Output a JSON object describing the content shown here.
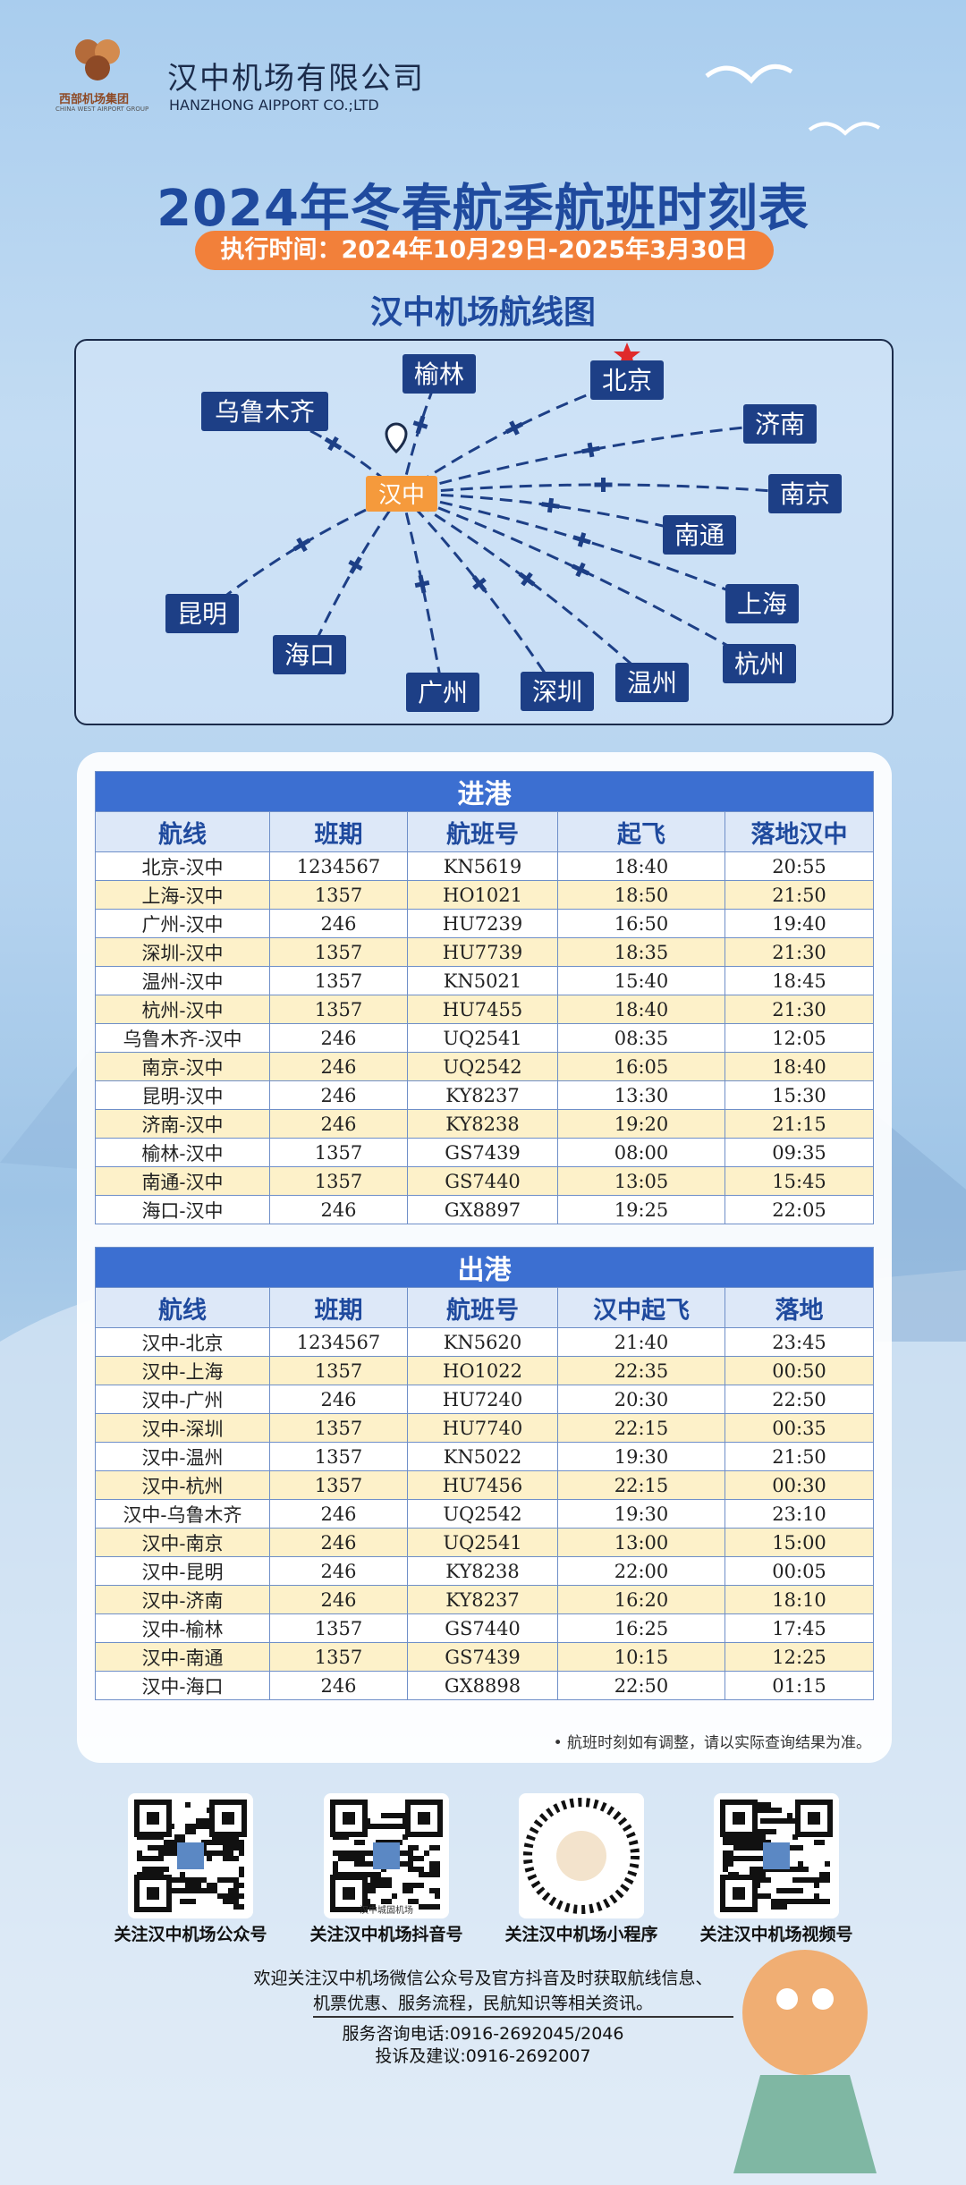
{
  "header": {
    "logo_cn": "西部机场集团",
    "logo_en": "CHINA WEST AIRPORT GROUP",
    "company_cn": "汉中机场有限公司",
    "company_en": "HANZHONG AIPPORT CO.;LTD"
  },
  "title": "2024年冬春航季航班时刻表",
  "period": "执行时间：2024年10月29日-2025年3月30日",
  "map": {
    "title": "汉中机场航线图",
    "hub": "汉中",
    "destinations": [
      "北京",
      "榆林",
      "乌鲁木齐",
      "济南",
      "南京",
      "南通",
      "上海",
      "杭州",
      "温州",
      "深圳",
      "广州",
      "海口",
      "昆明"
    ]
  },
  "arrivals": {
    "title": "进港",
    "columns": [
      "航线",
      "班期",
      "航班号",
      "起飞",
      "落地汉中"
    ],
    "rows": [
      [
        "北京-汉中",
        "1234567",
        "KN5619",
        "18:40",
        "20:55"
      ],
      [
        "上海-汉中",
        "1357",
        "HO1021",
        "18:50",
        "21:50"
      ],
      [
        "广州-汉中",
        "246",
        "HU7239",
        "16:50",
        "19:40"
      ],
      [
        "深圳-汉中",
        "1357",
        "HU7739",
        "18:35",
        "21:30"
      ],
      [
        "温州-汉中",
        "1357",
        "KN5021",
        "15:40",
        "18:45"
      ],
      [
        "杭州-汉中",
        "1357",
        "HU7455",
        "18:40",
        "21:30"
      ],
      [
        "乌鲁木齐-汉中",
        "246",
        "UQ2541",
        "08:35",
        "12:05"
      ],
      [
        "南京-汉中",
        "246",
        "UQ2542",
        "16:05",
        "18:40"
      ],
      [
        "昆明-汉中",
        "246",
        "KY8237",
        "13:30",
        "15:30"
      ],
      [
        "济南-汉中",
        "246",
        "KY8238",
        "19:20",
        "21:15"
      ],
      [
        "榆林-汉中",
        "1357",
        "GS7439",
        "08:00",
        "09:35"
      ],
      [
        "南通-汉中",
        "1357",
        "GS7440",
        "13:05",
        "15:45"
      ],
      [
        "海口-汉中",
        "246",
        "GX8897",
        "19:25",
        "22:05"
      ]
    ]
  },
  "departures": {
    "title": "出港",
    "columns": [
      "航线",
      "班期",
      "航班号",
      "汉中起飞",
      "落地"
    ],
    "rows": [
      [
        "汉中-北京",
        "1234567",
        "KN5620",
        "21:40",
        "23:45"
      ],
      [
        "汉中-上海",
        "1357",
        "HO1022",
        "22:35",
        "00:50"
      ],
      [
        "汉中-广州",
        "246",
        "HU7240",
        "20:30",
        "22:50"
      ],
      [
        "汉中-深圳",
        "1357",
        "HU7740",
        "22:15",
        "00:35"
      ],
      [
        "汉中-温州",
        "1357",
        "KN5022",
        "19:30",
        "21:50"
      ],
      [
        "汉中-杭州",
        "1357",
        "HU7456",
        "22:15",
        "00:30"
      ],
      [
        "汉中-乌鲁木齐",
        "246",
        "UQ2542",
        "19:30",
        "23:10"
      ],
      [
        "汉中-南京",
        "246",
        "UQ2541",
        "13:00",
        "15:00"
      ],
      [
        "汉中-昆明",
        "246",
        "KY8238",
        "22:00",
        "00:05"
      ],
      [
        "汉中-济南",
        "246",
        "KY8237",
        "16:20",
        "18:10"
      ],
      [
        "汉中-榆林",
        "1357",
        "GS7440",
        "16:25",
        "17:45"
      ],
      [
        "汉中-南通",
        "1357",
        "GS7439",
        "10:15",
        "12:25"
      ],
      [
        "汉中-海口",
        "246",
        "GX8898",
        "22:50",
        "01:15"
      ]
    ]
  },
  "note": "• 航班时刻如有调整，请以实际查询结果为准。",
  "qr_codes": [
    {
      "caption": "关注汉中机场公众号"
    },
    {
      "caption": "关注汉中机场抖音号",
      "inner_text": "汉中城固机场"
    },
    {
      "caption": "关注汉中机场小程序"
    },
    {
      "caption": "关注汉中机场视频号"
    }
  ],
  "footer": {
    "lines": [
      "欢迎关注汉中机场微信公众号及官方抖音及时获取航线信息、",
      "机票优惠、服务流程，民航知识等相关资讯。"
    ],
    "phone": "服务咨询电话:0916-2692045/2046",
    "complaint": "投诉及建议:0916-2692007"
  }
}
